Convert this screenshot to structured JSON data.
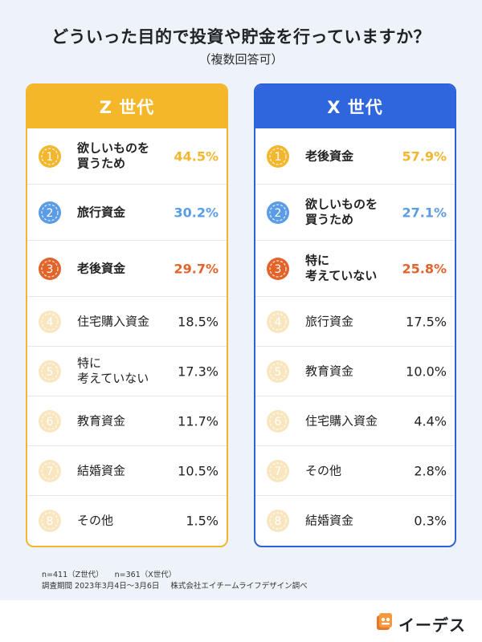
{
  "header": {
    "title": "どういった目的で投資や貯金を行っていますか？",
    "subtitle": "（複数回答可）"
  },
  "colors": {
    "z_header": "#f5b72a",
    "x_header": "#2f66de",
    "rank1": "#f3b72e",
    "rank2": "#5b9ce6",
    "rank3": "#e2642a",
    "rank_other": "#f9e6bf"
  },
  "chart_data": [
    {
      "type": "table",
      "title": "Z 世代",
      "rows": [
        {
          "rank": "1",
          "label": "欲しいものを\n買うため",
          "value": "44.5%",
          "num": 44.5
        },
        {
          "rank": "2",
          "label": "旅行資金",
          "value": "30.2%",
          "num": 30.2
        },
        {
          "rank": "3",
          "label": "老後資金",
          "value": "29.7%",
          "num": 29.7
        },
        {
          "rank": "4",
          "label": "住宅購入資金",
          "value": "18.5%",
          "num": 18.5
        },
        {
          "rank": "5",
          "label": "特に\n考えていない",
          "value": "17.3%",
          "num": 17.3
        },
        {
          "rank": "6",
          "label": "教育資金",
          "value": "11.7%",
          "num": 11.7
        },
        {
          "rank": "7",
          "label": "結婚資金",
          "value": "10.5%",
          "num": 10.5
        },
        {
          "rank": "8",
          "label": "その他",
          "value": "1.5%",
          "num": 1.5
        }
      ]
    },
    {
      "type": "table",
      "title": "X 世代",
      "rows": [
        {
          "rank": "1",
          "label": "老後資金",
          "value": "57.9%",
          "num": 57.9
        },
        {
          "rank": "2",
          "label": "欲しいものを\n買うため",
          "value": "27.1%",
          "num": 27.1
        },
        {
          "rank": "3",
          "label": "特に\n考えていない",
          "value": "25.8%",
          "num": 25.8
        },
        {
          "rank": "4",
          "label": "旅行資金",
          "value": "17.5%",
          "num": 17.5
        },
        {
          "rank": "5",
          "label": "教育資金",
          "value": "10.0%",
          "num": 10.0
        },
        {
          "rank": "6",
          "label": "住宅購入資金",
          "value": "4.4%",
          "num": 4.4
        },
        {
          "rank": "7",
          "label": "その他",
          "value": "2.8%",
          "num": 2.8
        },
        {
          "rank": "8",
          "label": "結婚資金",
          "value": "0.3%",
          "num": 0.3
        }
      ]
    }
  ],
  "footer": {
    "sample_z": "n=411（Z世代）",
    "sample_x": "n=361（X世代）",
    "period": "調査期間  2023年3月4日～3月6日",
    "source": "株式会社エイチームライフデザイン調べ"
  },
  "logo": {
    "text": "イーデス"
  }
}
